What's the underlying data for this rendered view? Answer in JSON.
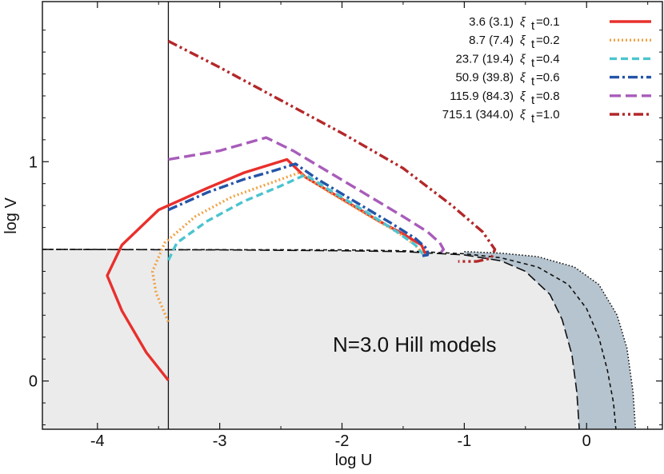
{
  "chart_data": {
    "type": "line",
    "xlabel": "log U",
    "ylabel": "log V",
    "xlim": [
      -4.45,
      0.62
    ],
    "ylim": [
      -0.22,
      1.73
    ],
    "x_ticks": [
      {
        "value": -4,
        "label": "-4"
      },
      {
        "value": -3,
        "label": "-3"
      },
      {
        "value": -2,
        "label": "-2"
      },
      {
        "value": -1,
        "label": "-1"
      },
      {
        "value": 0,
        "label": "0"
      }
    ],
    "y_ticks": [
      {
        "value": 0,
        "label": "0"
      },
      {
        "value": 1,
        "label": "1"
      }
    ],
    "annotation": "N=3.0 Hill models",
    "vertical_line_x": -3.42,
    "legend_position": "top-right",
    "shaded_regions": [
      {
        "color": "#ebebeb",
        "points": [
          [
            -4.45,
            0.6
          ],
          [
            -3.0,
            0.598
          ],
          [
            -2.0,
            0.594
          ],
          [
            -1.5,
            0.59
          ],
          [
            -1.0,
            0.575
          ],
          [
            -0.7,
            0.548
          ],
          [
            -0.5,
            0.5
          ],
          [
            -0.3,
            0.395
          ],
          [
            -0.2,
            0.28
          ],
          [
            -0.12,
            0.12
          ],
          [
            -0.08,
            -0.05
          ],
          [
            -0.06,
            -0.22
          ],
          [
            -4.45,
            -0.22
          ]
        ]
      },
      {
        "color": "#b6c4cf",
        "points": [
          [
            -1.0,
            0.575
          ],
          [
            -0.7,
            0.548
          ],
          [
            -0.5,
            0.5
          ],
          [
            -0.3,
            0.395
          ],
          [
            -0.2,
            0.28
          ],
          [
            -0.12,
            0.12
          ],
          [
            -0.08,
            -0.05
          ],
          [
            -0.06,
            -0.22
          ],
          [
            0.4,
            -0.22
          ],
          [
            0.38,
            -0.05
          ],
          [
            0.33,
            0.15
          ],
          [
            0.25,
            0.3
          ],
          [
            0.1,
            0.44
          ],
          [
            -0.1,
            0.52
          ],
          [
            -0.4,
            0.567
          ],
          [
            -0.7,
            0.583
          ],
          [
            -1.0,
            0.59
          ]
        ]
      }
    ],
    "boundaries": [
      {
        "style": "long-dash",
        "points": [
          [
            -4.45,
            0.6
          ],
          [
            -3.0,
            0.598
          ],
          [
            -2.0,
            0.594
          ],
          [
            -1.5,
            0.59
          ],
          [
            -1.0,
            0.575
          ],
          [
            -0.7,
            0.548
          ],
          [
            -0.5,
            0.5
          ],
          [
            -0.3,
            0.395
          ],
          [
            -0.2,
            0.28
          ],
          [
            -0.12,
            0.12
          ],
          [
            -0.08,
            -0.05
          ],
          [
            -0.06,
            -0.22
          ]
        ]
      },
      {
        "style": "short-dash",
        "points": [
          [
            -4.45,
            0.6
          ],
          [
            -2.0,
            0.598
          ],
          [
            -1.5,
            0.594
          ],
          [
            -1.0,
            0.58
          ],
          [
            -0.7,
            0.562
          ],
          [
            -0.4,
            0.52
          ],
          [
            -0.15,
            0.44
          ],
          [
            0.0,
            0.33
          ],
          [
            0.1,
            0.2
          ],
          [
            0.17,
            0.05
          ],
          [
            0.22,
            -0.1
          ],
          [
            0.24,
            -0.22
          ]
        ]
      },
      {
        "style": "dotted",
        "points": [
          [
            -1.0,
            0.59
          ],
          [
            -0.7,
            0.583
          ],
          [
            -0.4,
            0.567
          ],
          [
            -0.1,
            0.52
          ],
          [
            0.1,
            0.44
          ],
          [
            0.25,
            0.3
          ],
          [
            0.33,
            0.15
          ],
          [
            0.38,
            -0.05
          ],
          [
            0.4,
            -0.22
          ]
        ]
      }
    ],
    "series": [
      {
        "name": "3.6 (3.1)  ξₜ=0.1",
        "label_main": "3.6 (3.1)",
        "label_xi": "ξ",
        "label_sub": "t",
        "label_eq": "=0.1",
        "color": "#e8302c",
        "dash": "solid",
        "points": [
          [
            -3.42,
            0.003
          ],
          [
            -3.6,
            0.13
          ],
          [
            -3.8,
            0.32
          ],
          [
            -3.92,
            0.48
          ],
          [
            -3.8,
            0.62
          ],
          [
            -3.5,
            0.78
          ],
          [
            -3.1,
            0.88
          ],
          [
            -2.8,
            0.95
          ],
          [
            -2.45,
            1.01
          ],
          [
            -2.3,
            0.93
          ],
          [
            -2.0,
            0.83
          ],
          [
            -1.7,
            0.73
          ],
          [
            -1.5,
            0.67
          ],
          [
            -1.35,
            0.62
          ],
          [
            -1.32,
            0.58
          ]
        ]
      },
      {
        "name": "8.7 (7.4)  ξₜ=0.2",
        "label_main": "8.7 (7.4)",
        "label_xi": "ξ",
        "label_sub": "t",
        "label_eq": "=0.2",
        "color": "#f0a348",
        "dash": "dotted",
        "points": [
          [
            -3.42,
            0.27
          ],
          [
            -3.52,
            0.4
          ],
          [
            -3.55,
            0.5
          ],
          [
            -3.45,
            0.63
          ],
          [
            -3.2,
            0.75
          ],
          [
            -2.9,
            0.84
          ],
          [
            -2.55,
            0.91
          ],
          [
            -2.35,
            0.95
          ],
          [
            -2.1,
            0.86
          ],
          [
            -1.8,
            0.76
          ],
          [
            -1.55,
            0.68
          ],
          [
            -1.4,
            0.62
          ],
          [
            -1.34,
            0.58
          ]
        ]
      },
      {
        "name": "23.7 (19.4)  ξₜ=0.4",
        "label_main": "23.7 (19.4)",
        "label_xi": "ξ",
        "label_sub": "t",
        "label_eq": "=0.4",
        "color": "#4cc4cf",
        "dash": "dash",
        "points": [
          [
            -3.42,
            0.55
          ],
          [
            -3.35,
            0.63
          ],
          [
            -3.1,
            0.73
          ],
          [
            -2.8,
            0.82
          ],
          [
            -2.5,
            0.89
          ],
          [
            -2.3,
            0.94
          ],
          [
            -2.1,
            0.87
          ],
          [
            -1.8,
            0.77
          ],
          [
            -1.55,
            0.68
          ],
          [
            -1.4,
            0.62
          ],
          [
            -1.34,
            0.58
          ]
        ]
      },
      {
        "name": "50.9 (39.8)  ξₜ=0.6",
        "label_main": "50.9 (39.8)",
        "label_xi": "ξ",
        "label_sub": "t",
        "label_eq": "=0.6",
        "color": "#2454a8",
        "dash": "dashdot",
        "points": [
          [
            -3.42,
            0.78
          ],
          [
            -3.1,
            0.86
          ],
          [
            -2.8,
            0.92
          ],
          [
            -2.55,
            0.96
          ],
          [
            -2.38,
            0.99
          ],
          [
            -2.2,
            0.92
          ],
          [
            -1.9,
            0.82
          ],
          [
            -1.6,
            0.72
          ],
          [
            -1.4,
            0.65
          ],
          [
            -1.3,
            0.6
          ],
          [
            -1.3,
            0.575
          ],
          [
            -1.35,
            0.57
          ]
        ]
      },
      {
        "name": "115.9 (84.3)  ξₜ=0.8",
        "label_main": "115.9 (84.3)",
        "label_xi": "ξ",
        "label_sub": "t",
        "label_eq": "=0.8",
        "color": "#a85cba",
        "dash": "longdash",
        "points": [
          [
            -3.42,
            1.01
          ],
          [
            -3.0,
            1.05
          ],
          [
            -2.62,
            1.11
          ],
          [
            -2.4,
            1.05
          ],
          [
            -2.1,
            0.95
          ],
          [
            -1.8,
            0.85
          ],
          [
            -1.5,
            0.75
          ],
          [
            -1.3,
            0.68
          ],
          [
            -1.2,
            0.63
          ],
          [
            -1.17,
            0.6
          ],
          [
            -1.2,
            0.58
          ]
        ]
      },
      {
        "name": "715.1 (344.0)  ξₜ=1.0",
        "label_main": "715.1 (344.0)",
        "label_xi": "ξ",
        "label_sub": "t",
        "label_eq": "=1.0",
        "color": "#b3282a",
        "dash": "dashdotdot",
        "points": [
          [
            -3.42,
            1.55
          ],
          [
            -3.0,
            1.43
          ],
          [
            -2.5,
            1.28
          ],
          [
            -2.0,
            1.13
          ],
          [
            -1.5,
            0.97
          ],
          [
            -1.1,
            0.8
          ],
          [
            -0.85,
            0.68
          ],
          [
            -0.75,
            0.6
          ],
          [
            -0.78,
            0.56
          ],
          [
            -0.9,
            0.545
          ],
          [
            -1.05,
            0.545
          ]
        ]
      }
    ]
  }
}
